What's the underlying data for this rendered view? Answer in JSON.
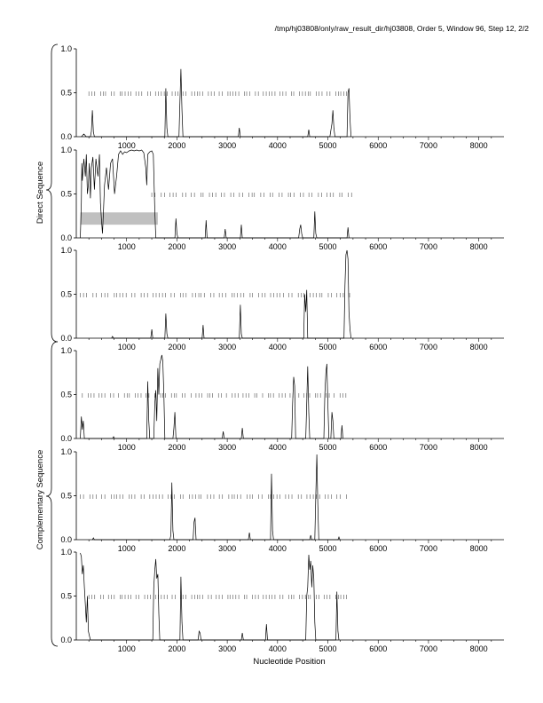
{
  "header": "/tmp/hj03808/only/raw_result_dir/hj03808, Order 5, Window 96, Step 12, 2/2",
  "group_labels": {
    "direct": "Direct Sequence",
    "complementary": "Complementary Sequence"
  },
  "colors": {
    "line": "#000000",
    "marks": "#555555",
    "bar": "#c0c0c0"
  },
  "chart_data": {
    "type": "line",
    "xlabel": "Nucleotide Position",
    "xlim": [
      0,
      8500
    ],
    "ylim": [
      0,
      1
    ],
    "x_ticks": [
      1000,
      2000,
      3000,
      4000,
      5000,
      6000,
      7000,
      8000
    ],
    "y_ticks": [
      "0.0",
      "0.5",
      "1.0"
    ],
    "panels": [
      {
        "group": "direct",
        "line": [
          [
            100,
            0
          ],
          [
            150,
            0.03
          ],
          [
            200,
            0
          ],
          [
            280,
            0
          ],
          [
            300,
            0.06
          ],
          [
            320,
            0.3
          ],
          [
            340,
            0.05
          ],
          [
            360,
            0
          ],
          [
            1760,
            0
          ],
          [
            1780,
            0.55
          ],
          [
            1800,
            0.1
          ],
          [
            1820,
            0
          ],
          [
            2040,
            0
          ],
          [
            2060,
            0.4
          ],
          [
            2080,
            0.77
          ],
          [
            2100,
            0.3
          ],
          [
            2120,
            0
          ],
          [
            3220,
            0
          ],
          [
            3240,
            0.1
          ],
          [
            3260,
            0
          ],
          [
            4600,
            0
          ],
          [
            4620,
            0.08
          ],
          [
            4640,
            0
          ],
          [
            5040,
            0
          ],
          [
            5080,
            0.15
          ],
          [
            5100,
            0.3
          ],
          [
            5120,
            0.1
          ],
          [
            5140,
            0
          ],
          [
            5380,
            0
          ],
          [
            5400,
            0.5
          ],
          [
            5420,
            0.55
          ],
          [
            5440,
            0.2
          ],
          [
            5460,
            0
          ]
        ],
        "marks": {
          "y": 0.49,
          "start": 250,
          "end": 5400,
          "step": 55,
          "pattern": "1110111011011"
        }
      },
      {
        "group": "direct",
        "line": [
          [
            80,
            0
          ],
          [
            100,
            0.4
          ],
          [
            110,
            0.85
          ],
          [
            120,
            0.65
          ],
          [
            150,
            0.9
          ],
          [
            180,
            0.7
          ],
          [
            200,
            0.95
          ],
          [
            220,
            0.5
          ],
          [
            240,
            0.6
          ],
          [
            260,
            0.85
          ],
          [
            280,
            0.45
          ],
          [
            300,
            0.8
          ],
          [
            330,
            0.92
          ],
          [
            360,
            0.55
          ],
          [
            390,
            0.9
          ],
          [
            430,
            0.7
          ],
          [
            460,
            0.95
          ],
          [
            480,
            0.4
          ],
          [
            500,
            0.2
          ],
          [
            520,
            0.05
          ],
          [
            540,
            0.3
          ],
          [
            560,
            0.6
          ],
          [
            600,
            0.8
          ],
          [
            640,
            0.55
          ],
          [
            680,
            0.85
          ],
          [
            720,
            0.9
          ],
          [
            760,
            0.5
          ],
          [
            800,
            0.7
          ],
          [
            840,
            0.95
          ],
          [
            880,
            0.99
          ],
          [
            920,
            0.95
          ],
          [
            960,
            0.98
          ],
          [
            1000,
            0.97
          ],
          [
            1050,
            0.99
          ],
          [
            1100,
            1
          ],
          [
            1150,
            0.99
          ],
          [
            1200,
            1
          ],
          [
            1250,
            0.99
          ],
          [
            1300,
            1
          ],
          [
            1340,
            0.97
          ],
          [
            1380,
            0.8
          ],
          [
            1400,
            0.6
          ],
          [
            1420,
            0.95
          ],
          [
            1460,
            0.98
          ],
          [
            1500,
            0.99
          ],
          [
            1530,
            0.95
          ],
          [
            1560,
            0.3
          ],
          [
            1580,
            0
          ],
          [
            1960,
            0
          ],
          [
            1980,
            0.22
          ],
          [
            2000,
            0.05
          ],
          [
            2020,
            0
          ],
          [
            2560,
            0
          ],
          [
            2580,
            0.2
          ],
          [
            2600,
            0
          ],
          [
            2940,
            0
          ],
          [
            2960,
            0.1
          ],
          [
            2980,
            0
          ],
          [
            3260,
            0
          ],
          [
            3280,
            0.15
          ],
          [
            3300,
            0
          ],
          [
            4420,
            0
          ],
          [
            4440,
            0.1
          ],
          [
            4460,
            0.15
          ],
          [
            4480,
            0.05
          ],
          [
            4500,
            0
          ],
          [
            4720,
            0
          ],
          [
            4740,
            0.3
          ],
          [
            4760,
            0.05
          ],
          [
            4780,
            0
          ],
          [
            5380,
            0
          ],
          [
            5400,
            0.12
          ],
          [
            5420,
            0
          ]
        ],
        "marks": {
          "y": 0.49,
          "start": 1500,
          "end": 5500,
          "step": 60,
          "pattern": "1101101110110"
        },
        "bar": {
          "x0": 80,
          "x1": 1620,
          "y0": 0.15,
          "y1": 0.29
        }
      },
      {
        "group": "direct",
        "line": [
          [
            700,
            0
          ],
          [
            720,
            0.02
          ],
          [
            740,
            0
          ],
          [
            1480,
            0
          ],
          [
            1500,
            0.1
          ],
          [
            1520,
            0
          ],
          [
            1760,
            0
          ],
          [
            1780,
            0.28
          ],
          [
            1800,
            0.05
          ],
          [
            1820,
            0
          ],
          [
            2500,
            0
          ],
          [
            2520,
            0.15
          ],
          [
            2540,
            0
          ],
          [
            3240,
            0
          ],
          [
            3260,
            0.38
          ],
          [
            3280,
            0.05
          ],
          [
            3300,
            0
          ],
          [
            4520,
            0
          ],
          [
            4540,
            0.5
          ],
          [
            4560,
            0.3
          ],
          [
            4580,
            0.55
          ],
          [
            4600,
            0
          ],
          [
            5320,
            0
          ],
          [
            5340,
            0.6
          ],
          [
            5360,
            0.95
          ],
          [
            5380,
            1
          ],
          [
            5400,
            0.9
          ],
          [
            5420,
            0.3
          ],
          [
            5440,
            0.1
          ],
          [
            5460,
            0
          ]
        ],
        "marks": {
          "y": 0.49,
          "start": 80,
          "end": 5450,
          "step": 60,
          "pattern": "1110110111011"
        }
      },
      {
        "group": "complementary",
        "line": [
          [
            80,
            0
          ],
          [
            100,
            0.25
          ],
          [
            120,
            0.1
          ],
          [
            140,
            0.2
          ],
          [
            160,
            0
          ],
          [
            720,
            0
          ],
          [
            740,
            0.02
          ],
          [
            760,
            0
          ],
          [
            1400,
            0
          ],
          [
            1420,
            0.65
          ],
          [
            1440,
            0.2
          ],
          [
            1460,
            0
          ],
          [
            1540,
            0
          ],
          [
            1560,
            0.4
          ],
          [
            1580,
            0.55
          ],
          [
            1600,
            0.2
          ],
          [
            1620,
            0.8
          ],
          [
            1640,
            0.5
          ],
          [
            1660,
            0.85
          ],
          [
            1680,
            0.9
          ],
          [
            1700,
            0.95
          ],
          [
            1720,
            0.88
          ],
          [
            1740,
            0.5
          ],
          [
            1760,
            0
          ],
          [
            1920,
            0
          ],
          [
            1940,
            0.12
          ],
          [
            1960,
            0.3
          ],
          [
            1980,
            0
          ],
          [
            2900,
            0
          ],
          [
            2920,
            0.08
          ],
          [
            2940,
            0
          ],
          [
            3280,
            0
          ],
          [
            3300,
            0.12
          ],
          [
            3320,
            0
          ],
          [
            4280,
            0
          ],
          [
            4300,
            0.4
          ],
          [
            4320,
            0.7
          ],
          [
            4340,
            0.6
          ],
          [
            4360,
            0
          ],
          [
            4560,
            0
          ],
          [
            4580,
            0.4
          ],
          [
            4600,
            0.82
          ],
          [
            4620,
            0.3
          ],
          [
            4640,
            0
          ],
          [
            4920,
            0
          ],
          [
            4940,
            0.5
          ],
          [
            4960,
            0.75
          ],
          [
            4980,
            0.85
          ],
          [
            5000,
            0.4
          ],
          [
            5020,
            0
          ],
          [
            5060,
            0
          ],
          [
            5080,
            0.3
          ],
          [
            5100,
            0.2
          ],
          [
            5120,
            0
          ],
          [
            5260,
            0
          ],
          [
            5280,
            0.15
          ],
          [
            5300,
            0
          ]
        ],
        "marks": {
          "y": 0.49,
          "start": 120,
          "end": 5450,
          "step": 55,
          "pattern": "1011101110110"
        }
      },
      {
        "group": "complementary",
        "line": [
          [
            320,
            0
          ],
          [
            340,
            0.02
          ],
          [
            360,
            0
          ],
          [
            1860,
            0
          ],
          [
            1880,
            0.05
          ],
          [
            1900,
            0.65
          ],
          [
            1920,
            0.1
          ],
          [
            1940,
            0
          ],
          [
            2320,
            0
          ],
          [
            2340,
            0.2
          ],
          [
            2360,
            0.25
          ],
          [
            2380,
            0
          ],
          [
            3420,
            0
          ],
          [
            3440,
            0.08
          ],
          [
            3460,
            0
          ],
          [
            3860,
            0
          ],
          [
            3880,
            0.75
          ],
          [
            3900,
            0.1
          ],
          [
            3920,
            0
          ],
          [
            4640,
            0
          ],
          [
            4660,
            0.05
          ],
          [
            4680,
            0
          ],
          [
            4740,
            0
          ],
          [
            4760,
            0.5
          ],
          [
            4780,
            0.97
          ],
          [
            4800,
            0.4
          ],
          [
            4820,
            0
          ],
          [
            5200,
            0
          ],
          [
            5220,
            0.03
          ],
          [
            5240,
            0
          ]
        ],
        "marks": {
          "y": 0.49,
          "start": 80,
          "end": 5400,
          "step": 60,
          "pattern": "1101110110111"
        }
      },
      {
        "group": "complementary",
        "line": [
          [
            80,
            0.99
          ],
          [
            100,
            0.95
          ],
          [
            120,
            0.75
          ],
          [
            140,
            0.85
          ],
          [
            160,
            0.6
          ],
          [
            180,
            0.4
          ],
          [
            200,
            0.2
          ],
          [
            220,
            0.5
          ],
          [
            240,
            0.1
          ],
          [
            260,
            0.05
          ],
          [
            280,
            0
          ],
          [
            1520,
            0
          ],
          [
            1540,
            0.6
          ],
          [
            1560,
            0.8
          ],
          [
            1580,
            0.92
          ],
          [
            1600,
            0.7
          ],
          [
            1620,
            0.75
          ],
          [
            1640,
            0.3
          ],
          [
            1660,
            0
          ],
          [
            2060,
            0
          ],
          [
            2080,
            0.72
          ],
          [
            2100,
            0.2
          ],
          [
            2120,
            0
          ],
          [
            2420,
            0
          ],
          [
            2440,
            0.1
          ],
          [
            2460,
            0.08
          ],
          [
            2480,
            0
          ],
          [
            3280,
            0
          ],
          [
            3300,
            0.08
          ],
          [
            3320,
            0
          ],
          [
            3760,
            0
          ],
          [
            3780,
            0.18
          ],
          [
            3800,
            0
          ],
          [
            4560,
            0
          ],
          [
            4580,
            0.5
          ],
          [
            4600,
            0.6
          ],
          [
            4620,
            0.97
          ],
          [
            4640,
            0.8
          ],
          [
            4660,
            0.9
          ],
          [
            4680,
            0.6
          ],
          [
            4700,
            0.85
          ],
          [
            4720,
            0.7
          ],
          [
            4740,
            0.2
          ],
          [
            4760,
            0
          ],
          [
            5160,
            0
          ],
          [
            5180,
            0.55
          ],
          [
            5200,
            0.1
          ],
          [
            5220,
            0
          ]
        ],
        "marks": {
          "y": 0.49,
          "start": 250,
          "end": 5450,
          "step": 55,
          "pattern": "1110110111011"
        }
      }
    ]
  }
}
